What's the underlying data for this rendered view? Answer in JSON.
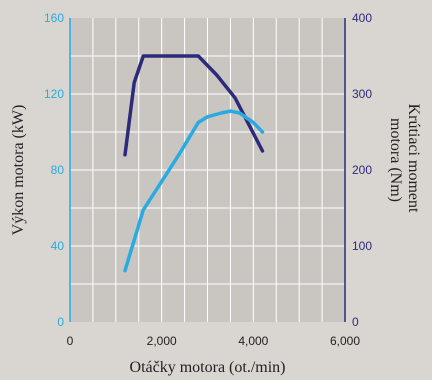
{
  "chart_data": {
    "type": "line",
    "xlabel": "Otáčky motora (ot./min)",
    "ylabel_left": "Výkon motora (kW)",
    "ylabel_right": "Krútiaci moment motora (Nm)",
    "ylabel_right_lines": [
      "Krútiaci moment",
      "motora (Nm)"
    ],
    "xlim": [
      0,
      6000
    ],
    "ylim_left": [
      0,
      160
    ],
    "ylim_right": [
      0,
      400
    ],
    "x_ticks": [
      0,
      2000,
      4000,
      6000
    ],
    "x_tick_labels": [
      "0",
      "2,000",
      "4,000",
      "6,000"
    ],
    "y_left_ticks": [
      0,
      40,
      80,
      120,
      160
    ],
    "y_left_tick_labels": [
      "0",
      "40",
      "80",
      "120",
      "160"
    ],
    "y_right_ticks": [
      0,
      100,
      200,
      300,
      400
    ],
    "y_right_tick_labels": [
      "0",
      "100",
      "200",
      "300",
      "400"
    ],
    "grid": true,
    "colors": {
      "power": "#29abe2",
      "torque": "#2e2a7a",
      "left_axis": "#29abe2",
      "right_axis": "#2e2a7a",
      "plot_bg": "#c9c6c1",
      "grid": "#ffffff"
    },
    "series": [
      {
        "id": "torque",
        "axis": "right",
        "color": "#2e2a7a",
        "x": [
          1200,
          1400,
          1600,
          2800,
          3200,
          3600,
          4200
        ],
        "y": [
          220,
          315,
          350,
          350,
          325,
          295,
          225
        ]
      },
      {
        "id": "power",
        "axis": "left",
        "color": "#29abe2",
        "x": [
          1200,
          1600,
          2000,
          2400,
          2800,
          3000,
          3300,
          3500,
          3700,
          4000,
          4200
        ],
        "y": [
          27,
          59,
          74,
          89,
          105,
          108,
          110,
          111,
          110,
          105,
          100
        ]
      }
    ]
  }
}
